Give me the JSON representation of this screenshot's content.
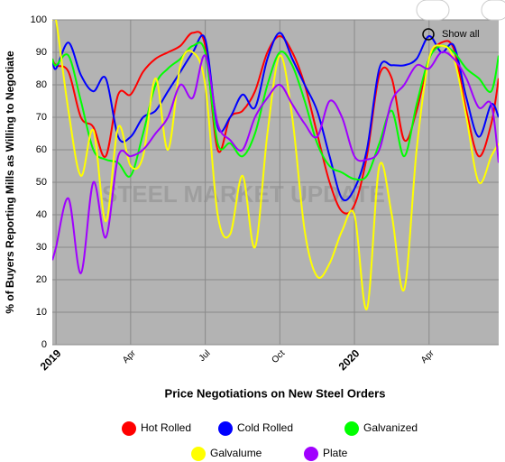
{
  "chart_data": {
    "type": "line",
    "title": "Price Negotiations on New Steel Orders",
    "y_label": "% of Buyers Reporting Mills as Willing to Negotiate",
    "watermark": "STEEL MARKET UPDATE",
    "button": "Show all",
    "x": [
      -0.15,
      0,
      0.5,
      1,
      1.5,
      2,
      2.5,
      3,
      3.5,
      4,
      4.5,
      5,
      5.5,
      6,
      6.5,
      7,
      7.5,
      8,
      8.5,
      9,
      9.5,
      10,
      10.5,
      11,
      11.5,
      12,
      12.5,
      13,
      13.5,
      14,
      14.5,
      15,
      15.5,
      16,
      16.5,
      17,
      17.5,
      17.8
    ],
    "xlim": [
      -0.15,
      17.8
    ],
    "xticks": [
      {
        "value": 0,
        "label": "2019"
      },
      {
        "value": 3,
        "label": "Apr"
      },
      {
        "value": 6,
        "label": "Jul"
      },
      {
        "value": 9,
        "label": "Oct"
      },
      {
        "value": 12,
        "label": "2020"
      },
      {
        "value": 15,
        "label": "Apr"
      }
    ],
    "ylim": [
      0,
      100
    ],
    "yticks": [
      0,
      10,
      20,
      30,
      40,
      50,
      60,
      70,
      80,
      90,
      100
    ],
    "grid": true,
    "legend": "bottom",
    "series": [
      {
        "name": "Hot Rolled",
        "color": "#ff0000",
        "values": [
          88,
          86,
          84,
          70,
          67,
          58,
          77,
          77,
          84,
          88,
          90,
          92,
          96,
          92,
          60,
          70,
          72,
          78,
          90,
          95,
          90,
          80,
          65,
          50,
          41,
          43,
          58,
          83,
          82,
          63,
          72,
          88,
          93,
          91,
          72,
          58,
          68,
          82
        ]
      },
      {
        "name": "Cold Rolled",
        "color": "#0000ff",
        "values": [
          88,
          85,
          93,
          83,
          78,
          82,
          64,
          64,
          70,
          72,
          78,
          84,
          90,
          94,
          67,
          70,
          77,
          73,
          88,
          96,
          88,
          80,
          72,
          58,
          45,
          48,
          60,
          85,
          86,
          86,
          88,
          95,
          90,
          92,
          76,
          64,
          74,
          70
        ]
      },
      {
        "name": "Galvanized",
        "color": "#00ff00",
        "values": [
          88,
          86,
          89,
          75,
          60,
          57,
          56,
          52,
          65,
          80,
          85,
          88,
          92,
          90,
          62,
          62,
          58,
          65,
          80,
          90,
          86,
          75,
          62,
          55,
          53,
          51,
          52,
          62,
          72,
          58,
          74,
          88,
          92,
          90,
          85,
          82,
          78,
          89
        ]
      },
      {
        "name": "Galvalume",
        "color": "#ffff00",
        "values": [
          100,
          100,
          72,
          52,
          66,
          38,
          67,
          55,
          58,
          82,
          60,
          86,
          90,
          80,
          40,
          34,
          52,
          30,
          65,
          89,
          70,
          35,
          21,
          25,
          35,
          40,
          11,
          55,
          40,
          17,
          60,
          88,
          92,
          88,
          70,
          50,
          58,
          62
        ]
      },
      {
        "name": "Plate",
        "color": "#a000ff",
        "values": [
          26,
          30,
          45,
          22,
          50,
          33,
          58,
          58,
          60,
          65,
          70,
          80,
          76,
          89,
          68,
          63,
          60,
          70,
          76,
          80,
          74,
          68,
          64,
          75,
          70,
          58,
          57,
          60,
          75,
          80,
          86,
          85,
          90,
          88,
          82,
          73,
          74,
          56
        ]
      }
    ]
  }
}
